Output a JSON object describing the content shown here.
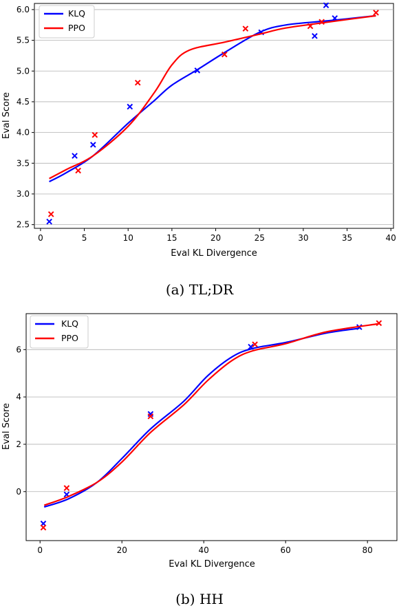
{
  "chart_data": [
    {
      "type": "line",
      "caption": "(a) TL;DR",
      "xlabel": "Eval KL Divergence",
      "ylabel": "Eval Score",
      "xlim": [
        -0.7,
        40.3
      ],
      "ylim": [
        2.44,
        6.1
      ],
      "xticks": [
        0,
        5,
        10,
        15,
        20,
        25,
        30,
        35,
        40
      ],
      "yticks": [
        2.5,
        3.0,
        3.5,
        4.0,
        4.5,
        5.0,
        5.5,
        6.0
      ],
      "ytick_labels": [
        "2.5",
        "3.0",
        "3.5",
        "4.0",
        "4.5",
        "5.0",
        "5.5",
        "6.0"
      ],
      "grid": "horizontal",
      "legend": "top-left",
      "series": [
        {
          "name": "KLQ",
          "color": "#0000ff",
          "curve": [
            [
              1.0,
              3.2
            ],
            [
              3.0,
              3.35
            ],
            [
              6.0,
              3.62
            ],
            [
              10.0,
              4.15
            ],
            [
              13.0,
              4.52
            ],
            [
              15.0,
              4.77
            ],
            [
              18.0,
              5.03
            ],
            [
              21.0,
              5.3
            ],
            [
              25.0,
              5.63
            ],
            [
              28.0,
              5.75
            ],
            [
              33.0,
              5.82
            ],
            [
              38.3,
              5.9
            ]
          ],
          "points": [
            [
              1.0,
              2.55
            ],
            [
              3.9,
              3.62
            ],
            [
              6.0,
              3.8
            ],
            [
              10.2,
              4.42
            ],
            [
              17.9,
              5.01
            ],
            [
              25.2,
              5.63
            ],
            [
              31.3,
              5.57
            ],
            [
              32.6,
              6.07
            ],
            [
              33.6,
              5.86
            ]
          ]
        },
        {
          "name": "PPO",
          "color": "#ff0000",
          "curve": [
            [
              1.0,
              3.25
            ],
            [
              3.0,
              3.4
            ],
            [
              6.0,
              3.62
            ],
            [
              10.0,
              4.1
            ],
            [
              13.0,
              4.65
            ],
            [
              15.0,
              5.1
            ],
            [
              17.0,
              5.34
            ],
            [
              21.0,
              5.47
            ],
            [
              25.0,
              5.6
            ],
            [
              28.0,
              5.7
            ],
            [
              33.0,
              5.8
            ],
            [
              38.3,
              5.9
            ]
          ],
          "points": [
            [
              1.2,
              2.67
            ],
            [
              4.3,
              3.38
            ],
            [
              6.2,
              3.96
            ],
            [
              11.1,
              4.81
            ],
            [
              21.0,
              5.27
            ],
            [
              23.4,
              5.69
            ],
            [
              30.8,
              5.73
            ],
            [
              32.1,
              5.8
            ],
            [
              38.3,
              5.95
            ]
          ]
        }
      ]
    },
    {
      "type": "line",
      "caption": "(b) HH",
      "xlabel": "Eval KL Divergence",
      "ylabel": "Eval Score",
      "xlim": [
        -3.4,
        87.2
      ],
      "ylim": [
        -2.07,
        7.52
      ],
      "xticks": [
        0,
        20,
        40,
        60,
        80
      ],
      "yticks": [
        0,
        2,
        4,
        6
      ],
      "ytick_labels": [
        "0",
        "2",
        "4",
        "6"
      ],
      "grid": "horizontal",
      "legend": "top-left",
      "series": [
        {
          "name": "KLQ",
          "color": "#0000ff",
          "curve": [
            [
              1.0,
              -0.65
            ],
            [
              7.0,
              -0.3
            ],
            [
              14.0,
              0.4
            ],
            [
              20.0,
              1.4
            ],
            [
              27.0,
              2.65
            ],
            [
              35.0,
              3.8
            ],
            [
              41.0,
              4.9
            ],
            [
              47.0,
              5.7
            ],
            [
              52.0,
              6.05
            ],
            [
              60.0,
              6.3
            ],
            [
              70.0,
              6.7
            ],
            [
              78.0,
              6.9
            ]
          ],
          "points": [
            [
              0.8,
              -1.35
            ],
            [
              6.5,
              -0.12
            ],
            [
              27.0,
              3.28
            ],
            [
              51.5,
              6.12
            ],
            [
              78.0,
              6.95
            ]
          ]
        },
        {
          "name": "PPO",
          "color": "#ff0000",
          "curve": [
            [
              1.0,
              -0.58
            ],
            [
              7.0,
              -0.2
            ],
            [
              14.0,
              0.4
            ],
            [
              20.0,
              1.25
            ],
            [
              27.0,
              2.5
            ],
            [
              35.0,
              3.65
            ],
            [
              41.0,
              4.7
            ],
            [
              47.0,
              5.55
            ],
            [
              52.0,
              5.95
            ],
            [
              60.0,
              6.25
            ],
            [
              70.0,
              6.75
            ],
            [
              83.0,
              7.1
            ]
          ],
          "points": [
            [
              0.8,
              -1.52
            ],
            [
              6.5,
              0.15
            ],
            [
              27.0,
              3.18
            ],
            [
              52.5,
              6.22
            ],
            [
              82.8,
              7.12
            ]
          ]
        }
      ]
    }
  ]
}
